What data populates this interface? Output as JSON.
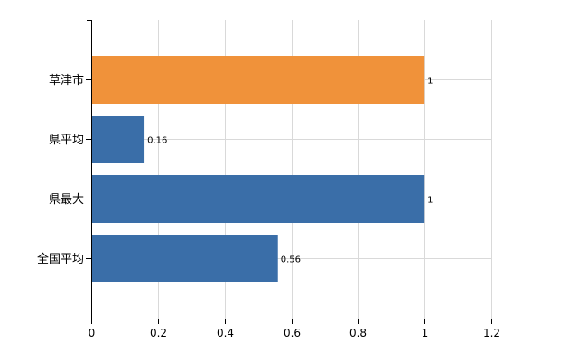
{
  "chart_data": {
    "type": "bar",
    "orientation": "horizontal",
    "categories": [
      "草津市",
      "県平均",
      "県最大",
      "全国平均"
    ],
    "values": [
      1,
      0.16,
      1,
      0.56
    ],
    "value_labels": [
      "1",
      "0.16",
      "1",
      "0.56"
    ],
    "bar_colors": [
      "#f0923a",
      "#3a6ea8",
      "#3a6ea8",
      "#3a6ea8"
    ],
    "xlim": [
      0,
      1.2
    ],
    "xticks": [
      0,
      0.2,
      0.4,
      0.6,
      0.8,
      1,
      1.2
    ],
    "xtick_labels": [
      "0",
      "0.2",
      "0.4",
      "0.6",
      "0.8",
      "1",
      "1.2"
    ],
    "grid": true,
    "title": "",
    "xlabel": "",
    "ylabel": ""
  }
}
